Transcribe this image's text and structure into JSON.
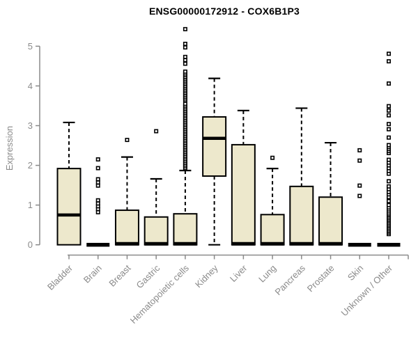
{
  "chart_data": {
    "type": "boxplot",
    "title": "ENSG00000172912 - COX6B1P3",
    "ylabel": "Expression",
    "xlabel": "",
    "ylim": [
      0,
      5.5
    ],
    "yticks": [
      0,
      1,
      2,
      3,
      4,
      5
    ],
    "grid": false,
    "legend": "none",
    "categories": [
      "Bladder",
      "Brain",
      "Breast",
      "Gastric",
      "Hematopoietic cells",
      "Kidney",
      "Liver",
      "Lung",
      "Pancreas",
      "Prostate",
      "Skin",
      "Unknown / Other"
    ],
    "series": [
      {
        "name": "Bladder",
        "low": 0,
        "q1": 0,
        "median": 0.75,
        "q3": 1.92,
        "high": 3.08,
        "outliers": []
      },
      {
        "name": "Brain",
        "low": 0,
        "q1": 0,
        "median": 0,
        "q3": 0,
        "high": 0,
        "outliers": [
          0.82,
          0.9,
          0.97,
          1.04,
          1.12,
          1.49,
          1.57,
          1.65,
          1.93,
          2.15
        ]
      },
      {
        "name": "Breast",
        "low": 0,
        "q1": 0,
        "median": 0,
        "q3": 0.87,
        "high": 2.21,
        "outliers": [
          2.64
        ]
      },
      {
        "name": "Gastric",
        "low": 0,
        "q1": 0,
        "median": 0,
        "q3": 0.7,
        "high": 1.66,
        "outliers": [
          2.86
        ]
      },
      {
        "name": "Hematopoietic cells",
        "low": 0,
        "q1": 0,
        "median": 0,
        "q3": 0.78,
        "high": 1.87,
        "outliers": [
          1.93,
          1.975,
          2.02,
          2.065,
          2.11,
          2.155,
          2.2,
          2.245,
          2.29,
          2.335,
          2.38,
          2.425,
          2.47,
          2.515,
          2.56,
          2.605,
          2.65,
          2.695,
          2.74,
          2.785,
          2.83,
          2.875,
          2.92,
          2.965,
          3.01,
          3.055,
          3.1,
          3.145,
          3.19,
          3.235,
          3.28,
          3.325,
          3.37,
          3.415,
          3.46,
          3.505,
          3.55,
          3.64,
          3.685,
          3.73,
          3.775,
          3.82,
          3.865,
          3.91,
          3.955,
          4.0,
          4.045,
          4.09,
          4.135,
          4.18,
          4.225,
          4.27,
          4.315,
          4.36,
          4.56,
          4.65,
          4.73,
          4.97,
          5.06,
          5.43
        ]
      },
      {
        "name": "Kidney",
        "low": 0,
        "q1": 1.73,
        "median": 2.68,
        "q3": 3.22,
        "high": 4.19,
        "outliers": []
      },
      {
        "name": "Liver",
        "low": 0,
        "q1": 0,
        "median": 0,
        "q3": 2.52,
        "high": 3.38,
        "outliers": []
      },
      {
        "name": "Lung",
        "low": 0,
        "q1": 0,
        "median": 0,
        "q3": 0.76,
        "high": 1.92,
        "outliers": [
          2.19
        ]
      },
      {
        "name": "Pancreas",
        "low": 0,
        "q1": 0,
        "median": 0,
        "q3": 1.47,
        "high": 3.44,
        "outliers": []
      },
      {
        "name": "Prostate",
        "low": 0,
        "q1": 0,
        "median": 0,
        "q3": 1.2,
        "high": 2.57,
        "outliers": []
      },
      {
        "name": "Skin",
        "low": 0,
        "q1": 0,
        "median": 0,
        "q3": 0,
        "high": 0,
        "outliers": [
          1.23,
          1.49,
          2.12,
          2.38
        ]
      },
      {
        "name": "Unknown / Other",
        "low": 0,
        "q1": 0,
        "median": 0,
        "q3": 0,
        "high": 0,
        "outliers": [
          0.27,
          0.31,
          0.35,
          0.39,
          0.43,
          0.47,
          0.51,
          0.55,
          0.59,
          0.63,
          0.67,
          0.71,
          0.75,
          0.79,
          0.84,
          0.89,
          0.94,
          1.0,
          1.1,
          1.2,
          1.27,
          1.33,
          1.4,
          1.47,
          1.6,
          1.79,
          1.86,
          1.93,
          2.0,
          2.07,
          2.14,
          2.31,
          2.36,
          2.41,
          2.46,
          2.51,
          2.7,
          2.91,
          3.04,
          3.26,
          3.38,
          3.49,
          4.06,
          4.62,
          4.81
        ]
      }
    ],
    "colors": {
      "box_fill": "#ede8cc",
      "box_stroke": "#000000",
      "median": "#000000",
      "axis": "#8a8a8a",
      "tick_label": "#8a8a8a",
      "title": "#000000",
      "outlier_fill": "#ffffff",
      "background": "#ffffff"
    }
  }
}
